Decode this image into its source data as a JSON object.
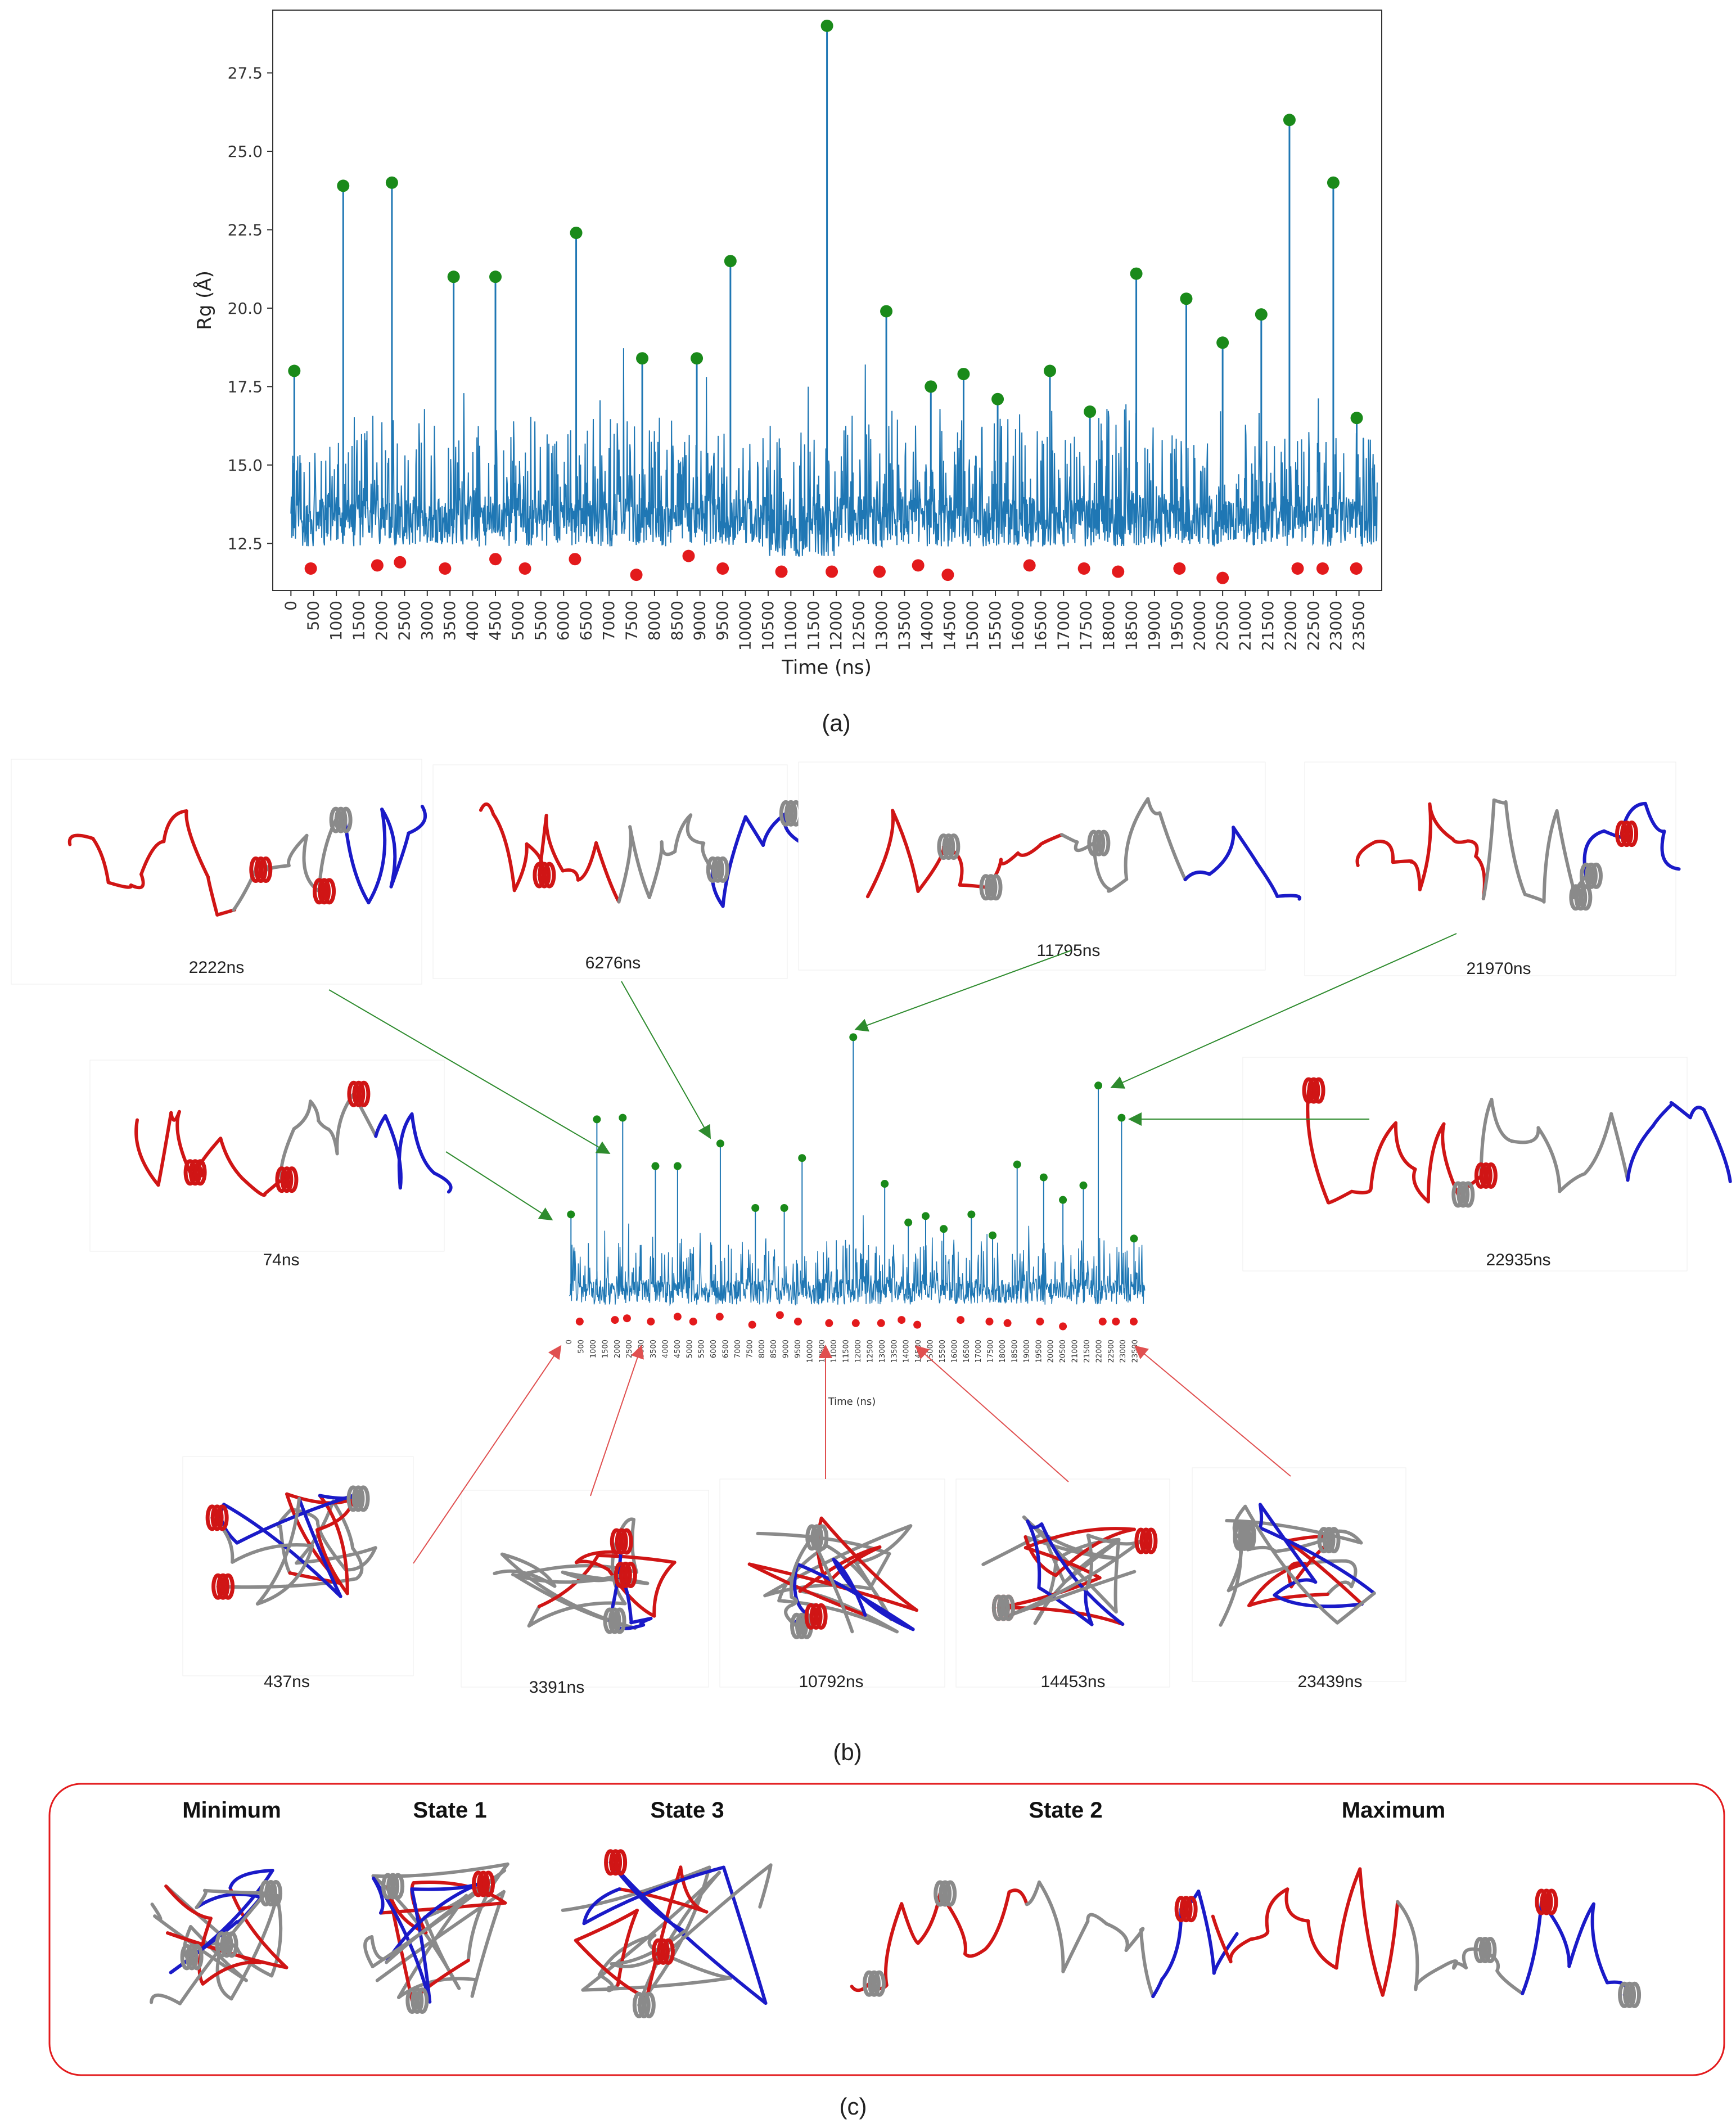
{
  "panel_labels": {
    "a": "(a)",
    "b": "(b)",
    "c": "(c)"
  },
  "chart_data": {
    "type": "line",
    "xlabel": "Time (ns)",
    "ylabel": "Rg (Å)",
    "xlim": [
      -400,
      24000
    ],
    "ylim": [
      11.0,
      29.5
    ],
    "x_ticks": [
      "0",
      "500",
      "1000",
      "1500",
      "2000",
      "2500",
      "3000",
      "3500",
      "4000",
      "4500",
      "5000",
      "5500",
      "6000",
      "6500",
      "7000",
      "7500",
      "8000",
      "8500",
      "9000",
      "9500",
      "10000",
      "10500",
      "11000",
      "11500",
      "12000",
      "12500",
      "13000",
      "13500",
      "14000",
      "14500",
      "15000",
      "15500",
      "16000",
      "16500",
      "17000",
      "17500",
      "18000",
      "18500",
      "19000",
      "19500",
      "20000",
      "20500",
      "21000",
      "21500",
      "22000",
      "22500",
      "23000",
      "23500"
    ],
    "y_ticks": [
      "12.5",
      "15.0",
      "17.5",
      "20.0",
      "22.5",
      "25.0",
      "27.5"
    ],
    "line_color": "#1f77b4",
    "maxima_color": "#1a8a1a",
    "minima_color": "#e31a1c",
    "series": [
      {
        "name": "",
        "note": "Rg trajectory, ~24000 ns, baseline ≈12.5–16 Å"
      }
    ],
    "maxima": [
      {
        "x": 74,
        "y": 18.0
      },
      {
        "x": 1150,
        "y": 23.9
      },
      {
        "x": 2222,
        "y": 24.0
      },
      {
        "x": 3580,
        "y": 21.0
      },
      {
        "x": 4500,
        "y": 21.0
      },
      {
        "x": 6276,
        "y": 22.4
      },
      {
        "x": 7730,
        "y": 18.4
      },
      {
        "x": 8930,
        "y": 18.4
      },
      {
        "x": 9670,
        "y": 21.5
      },
      {
        "x": 11795,
        "y": 29.0
      },
      {
        "x": 13100,
        "y": 19.9
      },
      {
        "x": 14080,
        "y": 17.5
      },
      {
        "x": 14800,
        "y": 17.9
      },
      {
        "x": 15550,
        "y": 17.1
      },
      {
        "x": 16700,
        "y": 18.0
      },
      {
        "x": 17580,
        "y": 16.7
      },
      {
        "x": 18600,
        "y": 21.1
      },
      {
        "x": 19700,
        "y": 20.3
      },
      {
        "x": 20500,
        "y": 18.9
      },
      {
        "x": 21350,
        "y": 19.8
      },
      {
        "x": 21970,
        "y": 26.0
      },
      {
        "x": 22935,
        "y": 24.0
      },
      {
        "x": 23450,
        "y": 16.5
      }
    ],
    "minima": [
      {
        "x": 437,
        "y": 11.7
      },
      {
        "x": 1900,
        "y": 11.8
      },
      {
        "x": 2400,
        "y": 11.9
      },
      {
        "x": 3391,
        "y": 11.7
      },
      {
        "x": 4500,
        "y": 12.0
      },
      {
        "x": 5150,
        "y": 11.7
      },
      {
        "x": 6250,
        "y": 12.0
      },
      {
        "x": 7600,
        "y": 11.5
      },
      {
        "x": 8750,
        "y": 12.1
      },
      {
        "x": 9500,
        "y": 11.7
      },
      {
        "x": 10792,
        "y": 11.6
      },
      {
        "x": 11900,
        "y": 11.6
      },
      {
        "x": 12950,
        "y": 11.6
      },
      {
        "x": 13800,
        "y": 11.8
      },
      {
        "x": 14453,
        "y": 11.5
      },
      {
        "x": 16250,
        "y": 11.8
      },
      {
        "x": 17450,
        "y": 11.7
      },
      {
        "x": 18200,
        "y": 11.6
      },
      {
        "x": 19550,
        "y": 11.7
      },
      {
        "x": 20500,
        "y": 11.4
      },
      {
        "x": 22150,
        "y": 11.7
      },
      {
        "x": 22700,
        "y": 11.7
      },
      {
        "x": 23439,
        "y": 11.7
      }
    ]
  },
  "panel_b": {
    "top_snapshots": [
      "2222ns",
      "6276ns",
      "11795ns",
      "21970ns"
    ],
    "middle_snapshots": [
      "74ns",
      "22935ns"
    ],
    "bottom_snapshots": [
      "437ns",
      "3391ns",
      "10792ns",
      "14453ns",
      "23439ns"
    ],
    "inset_xlabel": "Time (ns)"
  },
  "panel_c": {
    "states": [
      "Minimum",
      "State 1",
      "State 3",
      "State 2",
      "Maximum"
    ],
    "border_color": "#e31a1c"
  },
  "structure_colors": {
    "gray": "#8a8a8a",
    "red": "#d01515",
    "blue": "#1a1ac8"
  }
}
